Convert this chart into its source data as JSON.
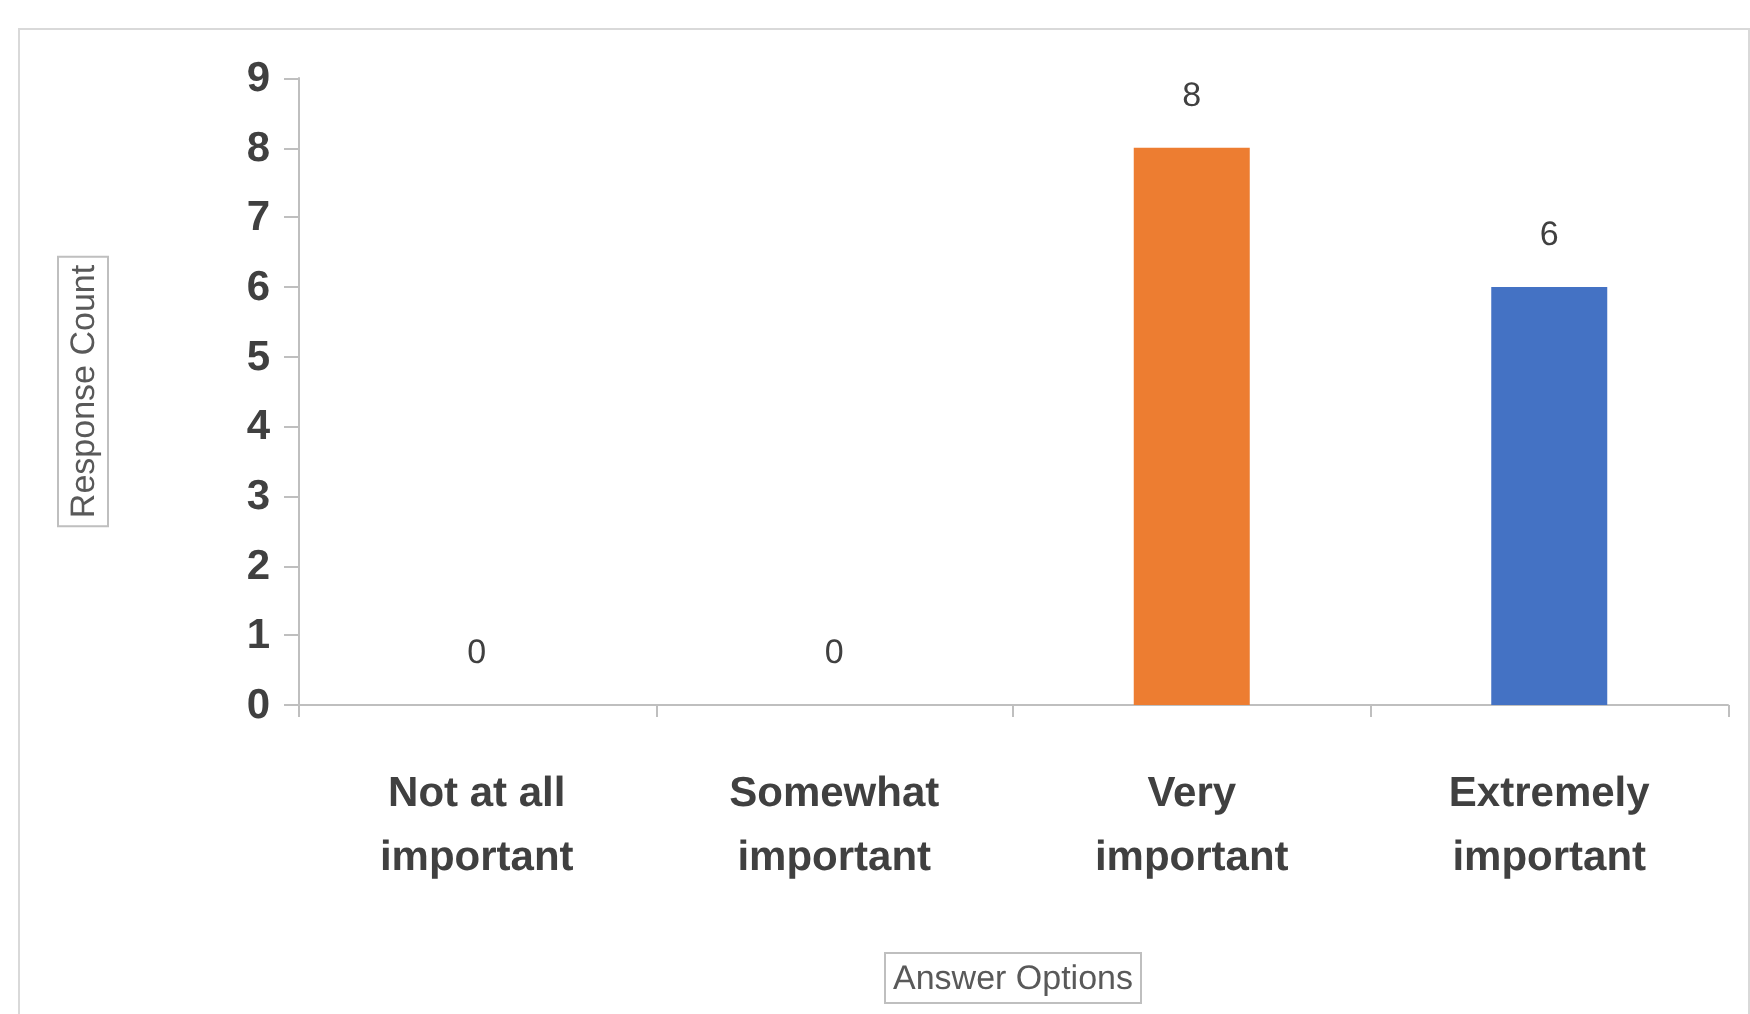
{
  "chart_data": {
    "type": "bar",
    "xlabel": "Answer Options",
    "ylabel": "Response Count",
    "categories": [
      "Not at all important",
      "Somewhat important",
      "Very important",
      "Extremely important"
    ],
    "values": [
      0,
      0,
      8,
      6
    ],
    "colors": [
      "#4472c4",
      "#ed7d31",
      "#ed7d31",
      "#4472c4"
    ],
    "ylim": [
      0,
      9
    ],
    "yticks": [
      0,
      1,
      2,
      3,
      4,
      5,
      6,
      7,
      8,
      9
    ],
    "grid": false,
    "data_labels": true
  }
}
